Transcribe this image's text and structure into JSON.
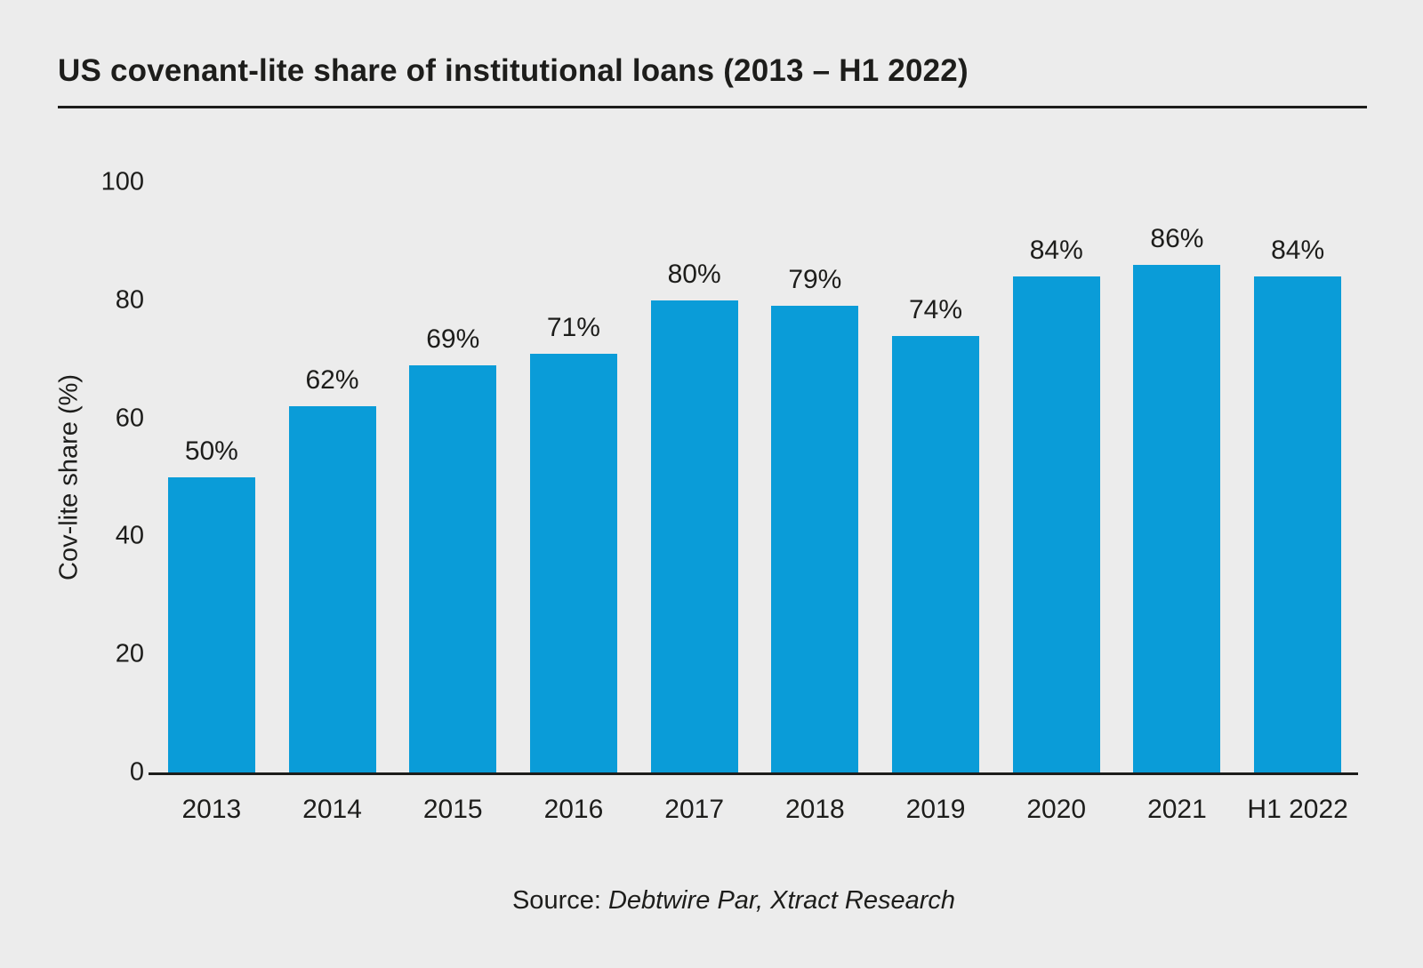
{
  "title": "US covenant-lite share of institutional loans (2013 – H1 2022)",
  "source": {
    "prefix": "Source: ",
    "text": "Debtwire Par, Xtract Research"
  },
  "colors": {
    "background": "#ECECEC",
    "bar": "#0A9CD8",
    "text": "#1D1D1B",
    "axis": "#1D1D1B"
  },
  "chart_data": {
    "type": "bar",
    "title": "US covenant-lite share of institutional loans (2013 – H1 2022)",
    "categories": [
      "2013",
      "2014",
      "2015",
      "2016",
      "2017",
      "2018",
      "2019",
      "2020",
      "2021",
      "H1 2022"
    ],
    "values": [
      50,
      62,
      69,
      71,
      80,
      79,
      74,
      84,
      86,
      84
    ],
    "value_labels": [
      "50%",
      "62%",
      "69%",
      "71%",
      "80%",
      "79%",
      "74%",
      "84%",
      "86%",
      "84%"
    ],
    "xlabel": "",
    "ylabel": "Cov-lite share (%)",
    "ylim": [
      0,
      100
    ],
    "yticks": [
      0,
      20,
      40,
      60,
      80,
      100
    ],
    "grid": false,
    "legend": null,
    "bar_color": "#0A9CD8"
  }
}
